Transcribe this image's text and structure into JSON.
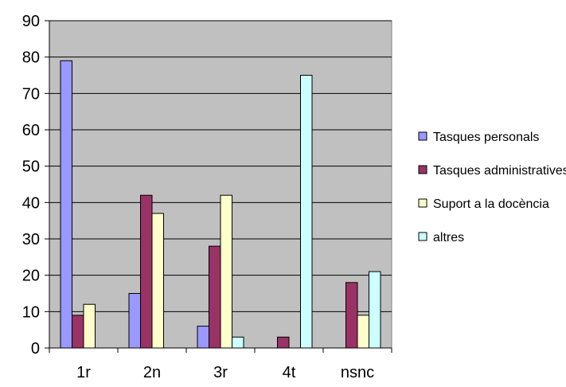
{
  "chart_data": {
    "type": "bar",
    "categories": [
      "1r",
      "2n",
      "3r",
      "4t",
      "nsnc"
    ],
    "ylim": [
      0,
      90
    ],
    "yticks": [
      0,
      10,
      20,
      30,
      40,
      50,
      60,
      70,
      80,
      90
    ],
    "grid": true,
    "legend_position": "right",
    "plot_background": "#c0c0c0",
    "series": [
      {
        "name": "Tasques personals",
        "color": "#9999ff",
        "values": [
          79,
          15,
          6,
          0,
          0
        ]
      },
      {
        "name": "Tasques administratives",
        "color": "#993366",
        "values": [
          9,
          42,
          28,
          3,
          18
        ]
      },
      {
        "name": "Suport a la docència",
        "color": "#ffffcc",
        "values": [
          12,
          37,
          42,
          0,
          9
        ]
      },
      {
        "name": "altres",
        "color": "#ccffff",
        "values": [
          0,
          0,
          3,
          75,
          21
        ]
      }
    ]
  }
}
